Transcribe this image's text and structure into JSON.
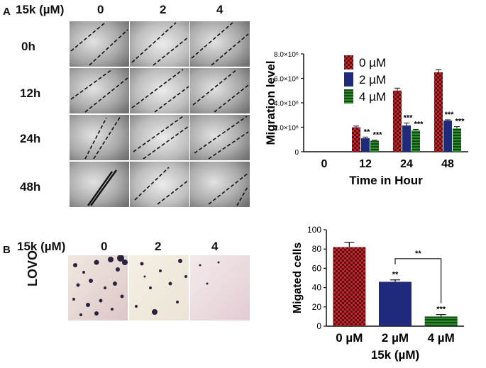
{
  "panel_a": {
    "letter": "A",
    "treatment_label": "15k (µM)",
    "concentrations": [
      "0",
      "2",
      "4"
    ],
    "timepoints": [
      "0h",
      "12h",
      "24h",
      "48h"
    ]
  },
  "panel_b": {
    "letter": "B",
    "treatment_label": "15k (µM)",
    "concentrations": [
      "0",
      "2",
      "4"
    ],
    "cell_line": "LOVO"
  },
  "chart_data": [
    {
      "type": "bar",
      "ylabel": "Migration level",
      "xlabel": "Time in Hour",
      "categories": [
        "0",
        "12",
        "24",
        "48"
      ],
      "yticks": [
        "0",
        "2.0×10⁶",
        "4.0×10⁶",
        "6.0×10⁶",
        "8.0×10⁶"
      ],
      "ylim": [
        0,
        8000000
      ],
      "legend_position": "top-left-inside",
      "series": [
        {
          "name": "0 µM",
          "color": "#c0282b",
          "pattern": "checker",
          "values": [
            0,
            2000000,
            5000000,
            6500000
          ],
          "errors": [
            0,
            100000,
            200000,
            200000
          ],
          "annotations": [
            "",
            "",
            "",
            ""
          ]
        },
        {
          "name": "2 µM",
          "color": "#1f2a7a",
          "pattern": "solid",
          "values": [
            0,
            1100000,
            2150000,
            2550000
          ],
          "errors": [
            0,
            100000,
            200000,
            60000
          ],
          "annotations": [
            "",
            "**",
            "***",
            "***"
          ]
        },
        {
          "name": "4 µM",
          "color": "#2e8b2e",
          "pattern": "stripes",
          "values": [
            0,
            900000,
            1750000,
            1900000
          ],
          "errors": [
            0,
            50000,
            80000,
            150000
          ],
          "annotations": [
            "",
            "***",
            "***",
            "***"
          ]
        }
      ]
    },
    {
      "type": "bar",
      "ylabel": "Migated cells",
      "xlabel": "15k (µM)",
      "categories": [
        "0 µM",
        "2 µM",
        "4 µM"
      ],
      "yticks": [
        "0",
        "20",
        "40",
        "60",
        "80",
        "100"
      ],
      "ylim": [
        0,
        100
      ],
      "values": [
        82,
        46,
        10
      ],
      "errors": [
        5,
        2,
        2
      ],
      "colors": [
        "#c0282b",
        "#1f2a7a",
        "#2e8b2e"
      ],
      "patterns": [
        "checker",
        "solid",
        "stripes"
      ],
      "annotations": [
        "",
        "**",
        "***"
      ],
      "bracket": {
        "from": "2 µM",
        "to": "4 µM",
        "label": "**"
      }
    }
  ]
}
